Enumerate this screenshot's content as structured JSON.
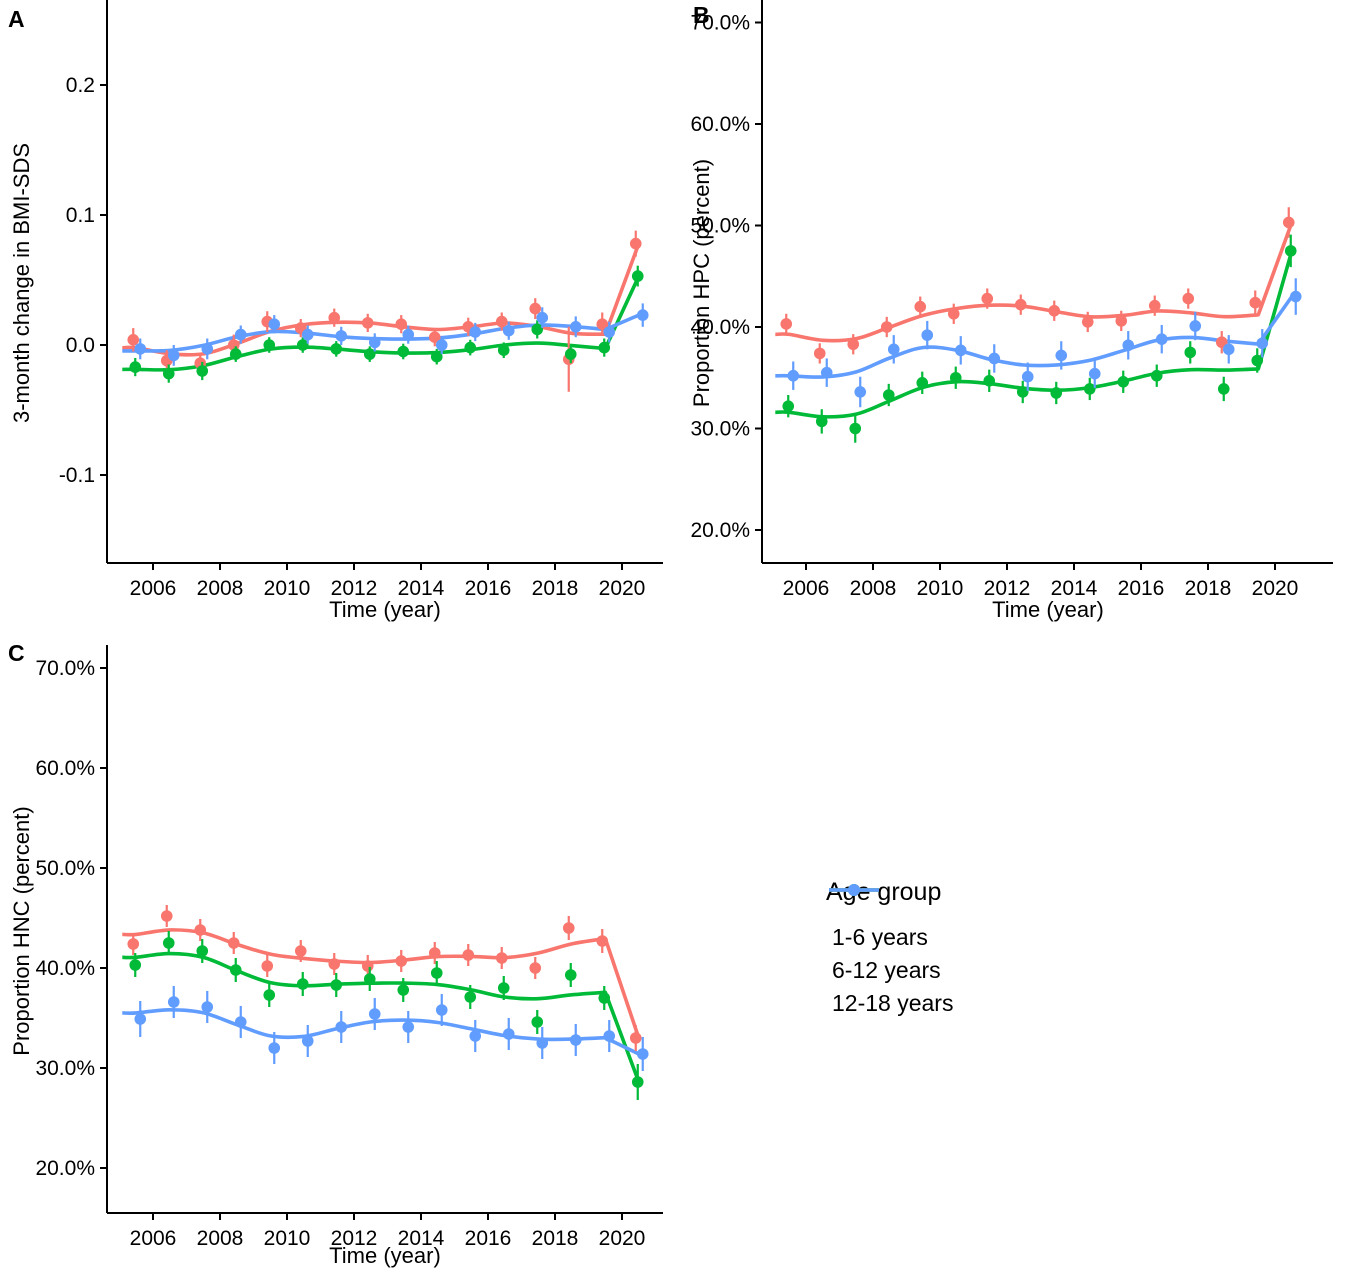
{
  "legend": {
    "title": "Age group",
    "entries": [
      {
        "label": "1-6 years",
        "color": "#F8766D"
      },
      {
        "label": "6-12 years",
        "color": "#00BA38"
      },
      {
        "label": "12-18 years",
        "color": "#619CFF"
      }
    ],
    "glyph": "line-with-point"
  },
  "colors": {
    "age_1_6": "#F8766D",
    "age_6_12": "#00BA38",
    "age_12_18": "#619CFF",
    "axis": "#000000",
    "background": "#FFFFFF"
  },
  "chart_data": [
    {
      "panel": "A",
      "type": "scatter",
      "subtype": "points-with-errorbars-and-loess-smooth",
      "xlabel": "Time (year)",
      "ylabel": "3-month change in BMI-SDS",
      "x": [
        2005.5,
        2006.5,
        2007.5,
        2008.5,
        2009.5,
        2010.5,
        2011.5,
        2012.5,
        2013.5,
        2014.5,
        2015.5,
        2016.5,
        2017.5,
        2018.5,
        2019.5,
        2020.5
      ],
      "x_tick_labels": [
        "2006",
        "2008",
        "2010",
        "2012",
        "2014",
        "2016",
        "2018",
        "2020"
      ],
      "x_tick_values": [
        2006,
        2008,
        2010,
        2012,
        2014,
        2016,
        2018,
        2020
      ],
      "y_tick_labels": [
        "0.2",
        "0.1",
        "0.0",
        "-0.1"
      ],
      "y_tick_values": [
        0.2,
        0.1,
        0.0,
        -0.1
      ],
      "ylim": [
        -0.168,
        0.265
      ],
      "grid": false,
      "annotation": "sharp upward spike of all series at 2020",
      "series": [
        {
          "name": "1-6 years",
          "color": "#F8766D",
          "values": [
            0.004,
            -0.012,
            -0.014,
            0.0,
            0.018,
            0.013,
            0.021,
            0.017,
            0.016,
            0.006,
            0.014,
            0.018,
            0.028,
            -0.011,
            0.016,
            0.078
          ],
          "errors": [
            0.009,
            0.008,
            0.008,
            0.008,
            0.008,
            0.007,
            0.007,
            0.007,
            0.007,
            0.007,
            0.007,
            0.007,
            0.008,
            0.025,
            0.009,
            0.01
          ]
        },
        {
          "name": "6-12 years",
          "color": "#00BA38",
          "values": [
            -0.017,
            -0.022,
            -0.02,
            -0.007,
            0.0,
            0.0,
            -0.003,
            -0.007,
            -0.005,
            -0.009,
            -0.002,
            -0.004,
            0.012,
            -0.007,
            -0.002,
            0.053
          ],
          "errors": [
            0.007,
            0.007,
            0.007,
            0.006,
            0.006,
            0.006,
            0.006,
            0.006,
            0.006,
            0.006,
            0.006,
            0.006,
            0.007,
            0.007,
            0.007,
            0.008
          ]
        },
        {
          "name": "12-18 years",
          "color": "#619CFF",
          "values": [
            -0.003,
            -0.008,
            -0.003,
            0.008,
            0.016,
            0.008,
            0.007,
            0.002,
            0.008,
            0.0,
            0.01,
            0.011,
            0.021,
            0.014,
            0.01,
            0.023
          ],
          "errors": [
            0.008,
            0.008,
            0.008,
            0.007,
            0.007,
            0.007,
            0.007,
            0.007,
            0.007,
            0.007,
            0.007,
            0.007,
            0.008,
            0.008,
            0.008,
            0.009
          ]
        }
      ]
    },
    {
      "panel": "B",
      "type": "scatter",
      "subtype": "points-with-errorbars-and-loess-smooth",
      "xlabel": "Time (year)",
      "ylabel": "Proportion HPC (percent)",
      "x": [
        2005.5,
        2006.5,
        2007.5,
        2008.5,
        2009.5,
        2010.5,
        2011.5,
        2012.5,
        2013.5,
        2014.5,
        2015.5,
        2016.5,
        2017.5,
        2018.5,
        2019.5,
        2020.5
      ],
      "x_tick_labels": [
        "2006",
        "2008",
        "2010",
        "2012",
        "2014",
        "2016",
        "2018",
        "2020"
      ],
      "x_tick_values": [
        2006,
        2008,
        2010,
        2012,
        2014,
        2016,
        2018,
        2020
      ],
      "y_tick_labels": [
        "70.0%",
        "60.0%",
        "50.0%",
        "40.0%",
        "30.0%",
        "20.0%"
      ],
      "y_tick_values": [
        70,
        60,
        50,
        40,
        30,
        20
      ],
      "ylim": [
        16.7,
        72.2
      ],
      "grid": false,
      "annotation": "sharp upward spike of all series at 2020",
      "series": [
        {
          "name": "1-6 years",
          "color": "#F8766D",
          "values": [
            40.3,
            37.4,
            38.3,
            40.0,
            42.0,
            41.3,
            42.8,
            42.2,
            41.6,
            40.5,
            40.6,
            42.1,
            42.8,
            38.5,
            42.4,
            50.3
          ],
          "errors": [
            1.0,
            1.0,
            1.0,
            1.0,
            1.0,
            1.0,
            1.0,
            1.0,
            1.0,
            1.0,
            1.0,
            1.0,
            1.0,
            1.1,
            1.2,
            1.5
          ]
        },
        {
          "name": "6-12 years",
          "color": "#00BA38",
          "values": [
            32.2,
            30.7,
            30.0,
            33.3,
            34.5,
            35.0,
            34.7,
            33.6,
            33.5,
            33.9,
            34.6,
            35.2,
            37.5,
            33.9,
            36.7,
            47.5
          ],
          "errors": [
            1.1,
            1.2,
            1.4,
            1.1,
            1.1,
            1.1,
            1.1,
            1.1,
            1.1,
            1.1,
            1.1,
            1.1,
            1.1,
            1.2,
            1.2,
            1.6
          ]
        },
        {
          "name": "12-18 years",
          "color": "#619CFF",
          "values": [
            35.2,
            35.5,
            33.6,
            37.8,
            39.2,
            37.7,
            36.9,
            35.1,
            37.2,
            35.4,
            38.2,
            38.8,
            40.1,
            37.8,
            38.4,
            43.0
          ],
          "errors": [
            1.4,
            1.4,
            1.5,
            1.4,
            1.4,
            1.4,
            1.4,
            1.4,
            1.4,
            1.4,
            1.4,
            1.4,
            1.4,
            1.4,
            1.4,
            1.8
          ]
        }
      ]
    },
    {
      "panel": "C",
      "type": "scatter",
      "subtype": "points-with-errorbars-and-loess-smooth",
      "xlabel": "Time (year)",
      "ylabel": "Proportion HNC (percent)",
      "x": [
        2005.5,
        2006.5,
        2007.5,
        2008.5,
        2009.5,
        2010.5,
        2011.5,
        2012.5,
        2013.5,
        2014.5,
        2015.5,
        2016.5,
        2017.5,
        2018.5,
        2019.5,
        2020.5
      ],
      "x_tick_labels": [
        "2006",
        "2008",
        "2010",
        "2012",
        "2014",
        "2016",
        "2018",
        "2020"
      ],
      "x_tick_values": [
        2006,
        2008,
        2010,
        2012,
        2014,
        2016,
        2018,
        2020
      ],
      "y_tick_labels": [
        "70.0%",
        "60.0%",
        "50.0%",
        "40.0%",
        "30.0%",
        "20.0%"
      ],
      "y_tick_values": [
        70,
        60,
        50,
        40,
        30,
        20
      ],
      "ylim": [
        15.5,
        72.3
      ],
      "grid": false,
      "annotation": "slow decline over time with sharp drop of all series at 2020",
      "series": [
        {
          "name": "1-6 years",
          "color": "#F8766D",
          "values": [
            42.4,
            45.2,
            43.8,
            42.5,
            40.2,
            41.7,
            40.4,
            40.2,
            40.7,
            41.5,
            41.3,
            41.0,
            40.0,
            44.0,
            42.7,
            33.0
          ],
          "errors": [
            1.1,
            1.1,
            1.1,
            1.1,
            1.1,
            1.1,
            1.1,
            1.1,
            1.1,
            1.1,
            1.1,
            1.1,
            1.1,
            1.2,
            1.2,
            1.3
          ]
        },
        {
          "name": "6-12 years",
          "color": "#00BA38",
          "values": [
            40.3,
            42.5,
            41.7,
            39.8,
            37.3,
            38.4,
            38.3,
            38.9,
            37.8,
            39.5,
            37.1,
            38.0,
            34.6,
            39.3,
            37.0,
            28.6
          ],
          "errors": [
            1.2,
            1.2,
            1.2,
            1.2,
            1.2,
            1.2,
            1.2,
            1.2,
            1.2,
            1.2,
            1.2,
            1.2,
            1.2,
            1.2,
            1.2,
            1.8
          ]
        },
        {
          "name": "12-18 years",
          "color": "#619CFF",
          "values": [
            34.9,
            36.6,
            36.1,
            34.6,
            32.0,
            32.7,
            34.1,
            35.4,
            34.1,
            35.8,
            33.2,
            33.4,
            32.5,
            32.8,
            33.2,
            31.4
          ],
          "errors": [
            1.8,
            1.6,
            1.6,
            1.6,
            1.6,
            1.6,
            1.6,
            1.6,
            1.6,
            1.6,
            1.6,
            1.6,
            1.6,
            1.6,
            1.6,
            1.7
          ]
        }
      ]
    }
  ]
}
